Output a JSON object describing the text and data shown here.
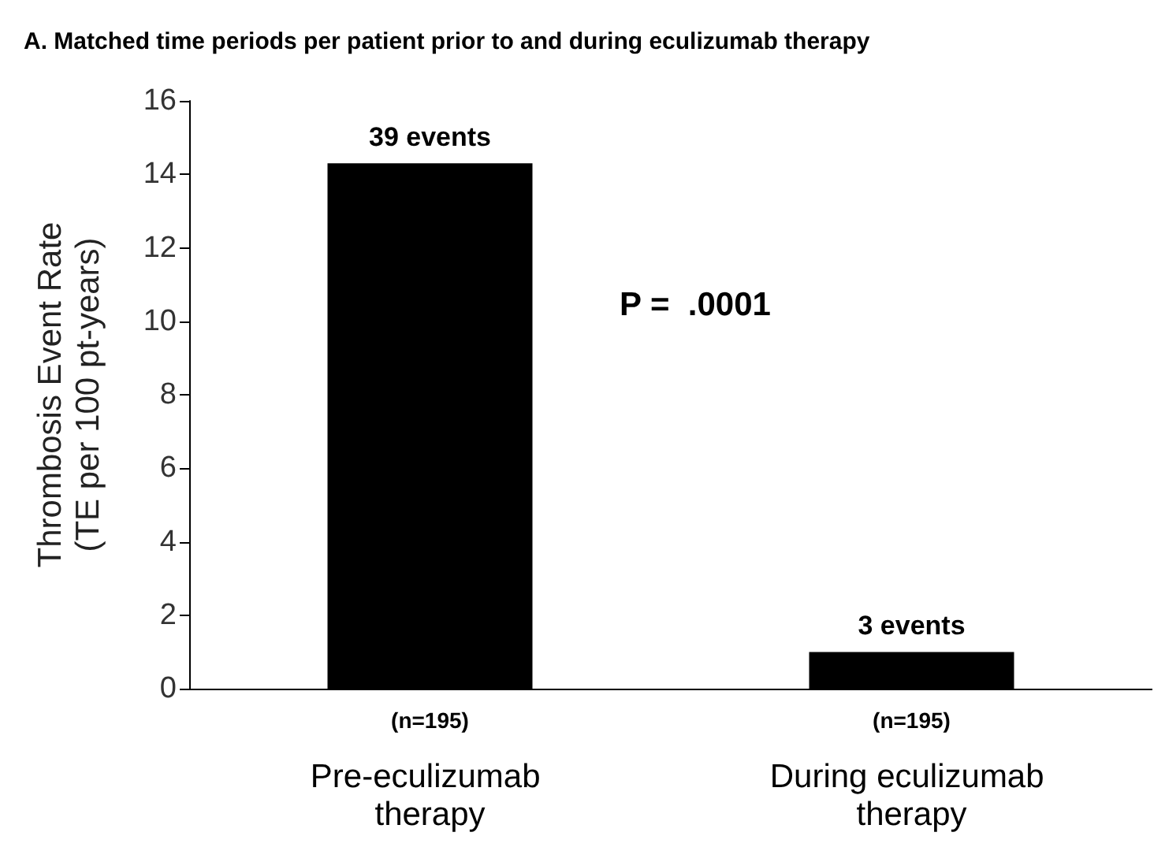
{
  "chart_data": {
    "type": "bar",
    "title": "A. Matched time periods per patient prior to and during eculizumab therapy",
    "ylabel": "Thrombosis Event Rate\n(TE per 100 pt-years)",
    "categories": [
      "Pre-eculizumab therapy",
      "During eculizumab therapy"
    ],
    "values": [
      14.3,
      1.0
    ],
    "color": "#000000",
    "ylim": [
      0,
      16
    ],
    "yticks": [
      0,
      2,
      4,
      6,
      8,
      10,
      12,
      14,
      16
    ],
    "annotations": [
      {
        "text": "39 events",
        "x": "Pre-eculizumab therapy",
        "y": 14.3
      },
      {
        "text": "3 events",
        "x": "During eculizumab therapy",
        "y": 1.0
      },
      "(n=195)",
      "(n=195)",
      "P =  .0001"
    ]
  }
}
